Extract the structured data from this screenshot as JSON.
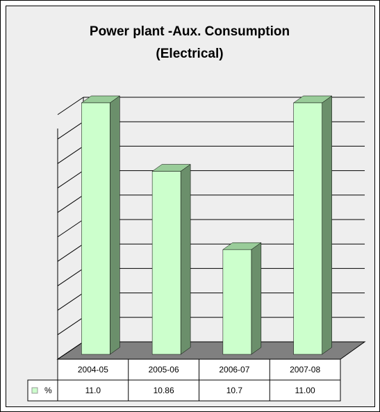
{
  "chart_data": {
    "type": "bar3d",
    "title_lines": [
      "Power plant -Aux. Consumption",
      "(Electrical)"
    ],
    "categories": [
      "2004-05",
      "2005-06",
      "2006-07",
      "2007-08"
    ],
    "series": [
      {
        "name": "%",
        "color": "#ccffcc",
        "values": [
          11,
          10.86,
          10.7,
          11
        ],
        "value_labels": [
          "11.0",
          "10.86",
          "10.7",
          "11.00"
        ]
      }
    ],
    "ylim": [
      10.5,
      11
    ],
    "yticks": [
      10.5,
      10.55,
      10.6,
      10.65,
      10.7,
      10.75,
      10.8,
      10.85,
      10.9,
      10.95,
      11
    ],
    "grid": true
  }
}
